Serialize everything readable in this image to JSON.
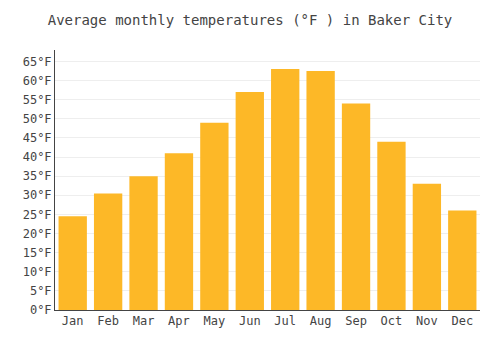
{
  "chart_data": {
    "type": "bar",
    "title": "Average monthly temperatures (°F ) in Baker City",
    "categories": [
      "Jan",
      "Feb",
      "Mar",
      "Apr",
      "May",
      "Jun",
      "Jul",
      "Aug",
      "Sep",
      "Oct",
      "Nov",
      "Dec"
    ],
    "values": [
      24.5,
      30.5,
      35.0,
      41.0,
      49.0,
      57.0,
      63.0,
      62.5,
      54.0,
      44.0,
      33.0,
      26.0
    ],
    "color": "#FDB827",
    "ylim": [
      0,
      68
    ],
    "yticks": [
      {
        "value": 0,
        "label": "0°F"
      },
      {
        "value": 5,
        "label": "5°F"
      },
      {
        "value": 10,
        "label": "10°F"
      },
      {
        "value": 15,
        "label": "15°F"
      },
      {
        "value": 20,
        "label": "20°F"
      },
      {
        "value": 25,
        "label": "25°F"
      },
      {
        "value": 30,
        "label": "30°F"
      },
      {
        "value": 35,
        "label": "35°F"
      },
      {
        "value": 40,
        "label": "40°F"
      },
      {
        "value": 45,
        "label": "45°F"
      },
      {
        "value": 50,
        "label": "50°F"
      },
      {
        "value": 55,
        "label": "55°F"
      },
      {
        "value": 60,
        "label": "60°F"
      },
      {
        "value": 65,
        "label": "65°F"
      }
    ],
    "grid": true
  }
}
